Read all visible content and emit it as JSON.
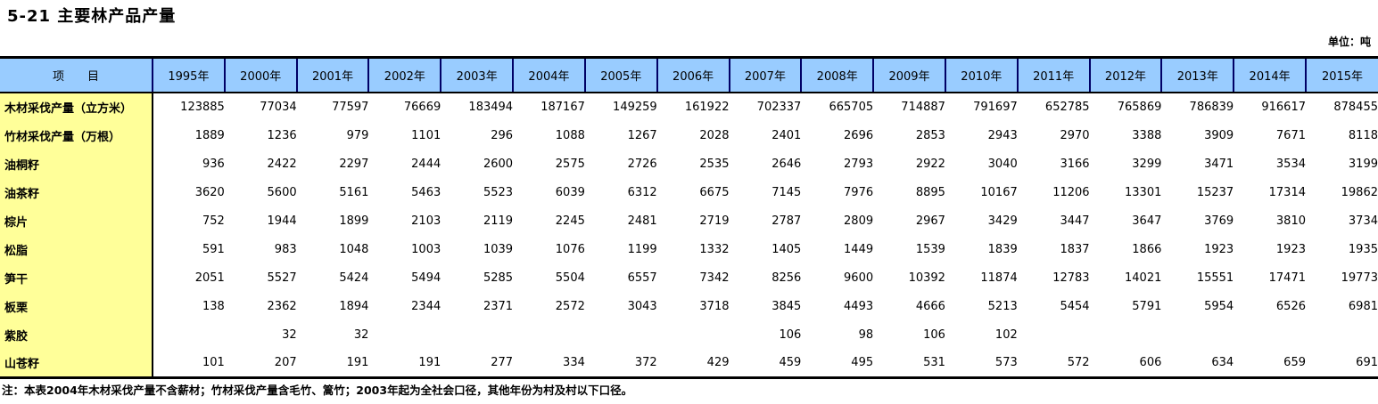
{
  "title": "5-21 主要林产品产量",
  "unit": "单位：吨",
  "table": {
    "item_header": "项　　目",
    "columns": [
      "1995年",
      "2000年",
      "2001年",
      "2002年",
      "2003年",
      "2004年",
      "2005年",
      "2006年",
      "2007年",
      "2008年",
      "2009年",
      "2010年",
      "2011年",
      "2012年",
      "2013年",
      "2014年",
      "2015年"
    ],
    "rows": [
      {
        "label": "木材采伐产量（立方米）",
        "values": [
          "123885",
          "77034",
          "77597",
          "76669",
          "183494",
          "187167",
          "149259",
          "161922",
          "702337",
          "665705",
          "714887",
          "791697",
          "652785",
          "765869",
          "786839",
          "916617",
          "878455"
        ]
      },
      {
        "label": "竹材采伐产量（万根）",
        "values": [
          "1889",
          "1236",
          "979",
          "1101",
          "296",
          "1088",
          "1267",
          "2028",
          "2401",
          "2696",
          "2853",
          "2943",
          "2970",
          "3388",
          "3909",
          "7671",
          "8118"
        ]
      },
      {
        "label": "油桐籽",
        "values": [
          "936",
          "2422",
          "2297",
          "2444",
          "2600",
          "2575",
          "2726",
          "2535",
          "2646",
          "2793",
          "2922",
          "3040",
          "3166",
          "3299",
          "3471",
          "3534",
          "3199"
        ]
      },
      {
        "label": "油茶籽",
        "values": [
          "3620",
          "5600",
          "5161",
          "5463",
          "5523",
          "6039",
          "6312",
          "6675",
          "7145",
          "7976",
          "8895",
          "10167",
          "11206",
          "13301",
          "15237",
          "17314",
          "19862"
        ]
      },
      {
        "label": "棕片",
        "values": [
          "752",
          "1944",
          "1899",
          "2103",
          "2119",
          "2245",
          "2481",
          "2719",
          "2787",
          "2809",
          "2967",
          "3429",
          "3447",
          "3647",
          "3769",
          "3810",
          "3734"
        ]
      },
      {
        "label": "松脂",
        "values": [
          "591",
          "983",
          "1048",
          "1003",
          "1039",
          "1076",
          "1199",
          "1332",
          "1405",
          "1449",
          "1539",
          "1839",
          "1837",
          "1866",
          "1923",
          "1923",
          "1935"
        ]
      },
      {
        "label": "笋干",
        "values": [
          "2051",
          "5527",
          "5424",
          "5494",
          "5285",
          "5504",
          "6557",
          "7342",
          "8256",
          "9600",
          "10392",
          "11874",
          "12783",
          "14021",
          "15551",
          "17471",
          "19773"
        ]
      },
      {
        "label": "板栗",
        "values": [
          "138",
          "2362",
          "1894",
          "2344",
          "2371",
          "2572",
          "3043",
          "3718",
          "3845",
          "4493",
          "4666",
          "5213",
          "5454",
          "5791",
          "5954",
          "6526",
          "6981"
        ]
      },
      {
        "label": "紫胶",
        "values": [
          "",
          "32",
          "32",
          "",
          "",
          "",
          "",
          "",
          "106",
          "98",
          "106",
          "102",
          "",
          "",
          "",
          "",
          ""
        ]
      },
      {
        "label": "山苍籽",
        "values": [
          "101",
          "207",
          "191",
          "191",
          "277",
          "334",
          "372",
          "429",
          "459",
          "495",
          "531",
          "573",
          "572",
          "606",
          "634",
          "659",
          "691"
        ]
      }
    ]
  },
  "note": "注：本表2004年木材采伐产量不含薪材；竹材采伐产量含毛竹、篙竹；2003年起为全社会口径，其他年份为村及村以下口径。",
  "colors": {
    "header_bg": "#99CCFF",
    "label_bg": "#FFFF99",
    "border": "#000000",
    "header_divider": "#000066"
  }
}
